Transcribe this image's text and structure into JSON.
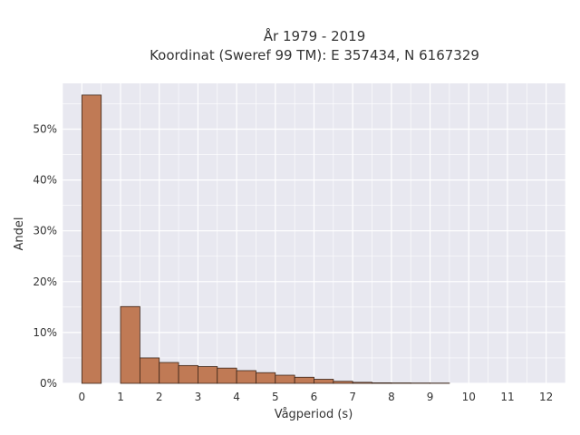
{
  "chart_data": {
    "type": "bar",
    "title_lines": [
      "År 1979 - 2019",
      "Koordinat (Sweref 99 TM): E 357434, N 6167329"
    ],
    "xlabel": "Vågperiod (s)",
    "ylabel": "Andel",
    "xlim": [
      -0.5,
      12.5
    ],
    "ylim": [
      0,
      0.59
    ],
    "x_ticks": [
      0,
      1,
      2,
      3,
      4,
      5,
      6,
      7,
      8,
      9,
      10,
      11,
      12
    ],
    "x_tick_labels": [
      "0",
      "1",
      "2",
      "3",
      "4",
      "5",
      "6",
      "7",
      "8",
      "9",
      "10",
      "11",
      "12"
    ],
    "y_ticks": [
      0,
      0.1,
      0.2,
      0.3,
      0.4,
      0.5
    ],
    "y_tick_labels": [
      "0%",
      "10%",
      "20%",
      "30%",
      "40%",
      "50%"
    ],
    "grid": true,
    "bar_color": "#c07a55",
    "bar_edge_color": "#3a2418",
    "bins": [
      {
        "x0": 0.0,
        "x1": 0.5,
        "value": 0.567
      },
      {
        "x0": 1.0,
        "x1": 1.5,
        "value": 0.151
      },
      {
        "x0": 1.5,
        "x1": 2.0,
        "value": 0.05
      },
      {
        "x0": 2.0,
        "x1": 2.5,
        "value": 0.041
      },
      {
        "x0": 2.5,
        "x1": 3.0,
        "value": 0.035
      },
      {
        "x0": 3.0,
        "x1": 3.5,
        "value": 0.033
      },
      {
        "x0": 3.5,
        "x1": 4.0,
        "value": 0.03
      },
      {
        "x0": 4.0,
        "x1": 4.5,
        "value": 0.025
      },
      {
        "x0": 4.5,
        "x1": 5.0,
        "value": 0.021
      },
      {
        "x0": 5.0,
        "x1": 5.5,
        "value": 0.016
      },
      {
        "x0": 5.5,
        "x1": 6.0,
        "value": 0.012
      },
      {
        "x0": 6.0,
        "x1": 6.5,
        "value": 0.008
      },
      {
        "x0": 6.5,
        "x1": 7.0,
        "value": 0.004
      },
      {
        "x0": 7.0,
        "x1": 7.5,
        "value": 0.002
      },
      {
        "x0": 7.5,
        "x1": 8.0,
        "value": 0.001
      },
      {
        "x0": 8.0,
        "x1": 8.5,
        "value": 0.0008
      },
      {
        "x0": 8.5,
        "x1": 9.0,
        "value": 0.0006
      },
      {
        "x0": 9.0,
        "x1": 9.5,
        "value": 0.0005
      }
    ]
  }
}
